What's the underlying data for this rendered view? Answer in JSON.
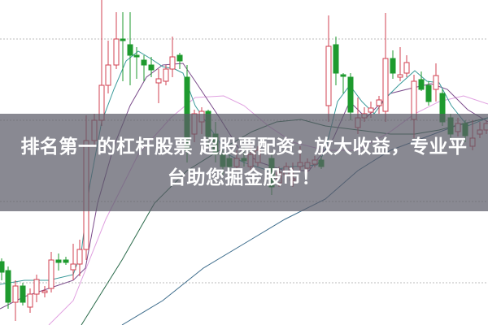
{
  "article": {
    "title": "排名第一的杠杆股票 超股票配资：放大收益，专业平台助您掘金股市！"
  },
  "image": {
    "kind": "candlestick-chart-thumbnail",
    "colors": {
      "up_candle": "#d04050",
      "down_candle": "#1e9a2e",
      "ma_short": "#3a9a9a",
      "ma_mid": "#7a4a8a",
      "ma_long": "#e0a0e0",
      "ma_longer": "#2a6a4a",
      "ma_longest": "#3a6a8a",
      "grid": "#bbbbbb",
      "banner": "#5c5c68"
    }
  }
}
